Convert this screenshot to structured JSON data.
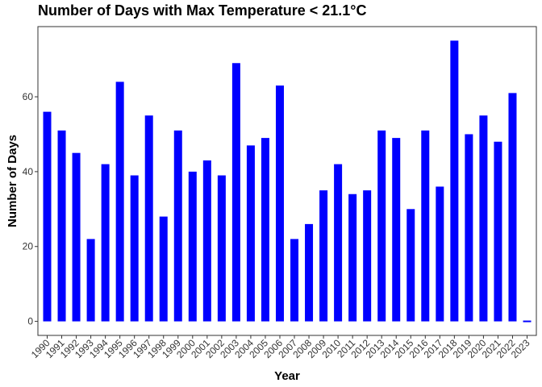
{
  "chart_data": {
    "type": "bar",
    "title": "Number of Days with Max Temperature < 21.1°C",
    "xlabel": "Year",
    "ylabel": "Number of Days",
    "categories": [
      "1990",
      "1991",
      "1992",
      "1993",
      "1994",
      "1995",
      "1996",
      "1997",
      "1998",
      "1999",
      "2000",
      "2001",
      "2002",
      "2003",
      "2004",
      "2005",
      "2006",
      "2007",
      "2008",
      "2009",
      "2010",
      "2011",
      "2012",
      "2013",
      "2014",
      "2015",
      "2016",
      "2017",
      "2018",
      "2019",
      "2020",
      "2021",
      "2022",
      "2023"
    ],
    "values": [
      56,
      51,
      45,
      22,
      42,
      64,
      39,
      55,
      28,
      51,
      40,
      43,
      39,
      69,
      47,
      49,
      63,
      22,
      26,
      35,
      42,
      34,
      35,
      51,
      49,
      30,
      51,
      36,
      75,
      50,
      55,
      48,
      61,
      0
    ],
    "y_ticks": [
      0,
      20,
      40,
      60
    ],
    "ylim": [
      -3.75,
      78.75
    ],
    "bar_color": "#0000ff",
    "grid": false
  }
}
